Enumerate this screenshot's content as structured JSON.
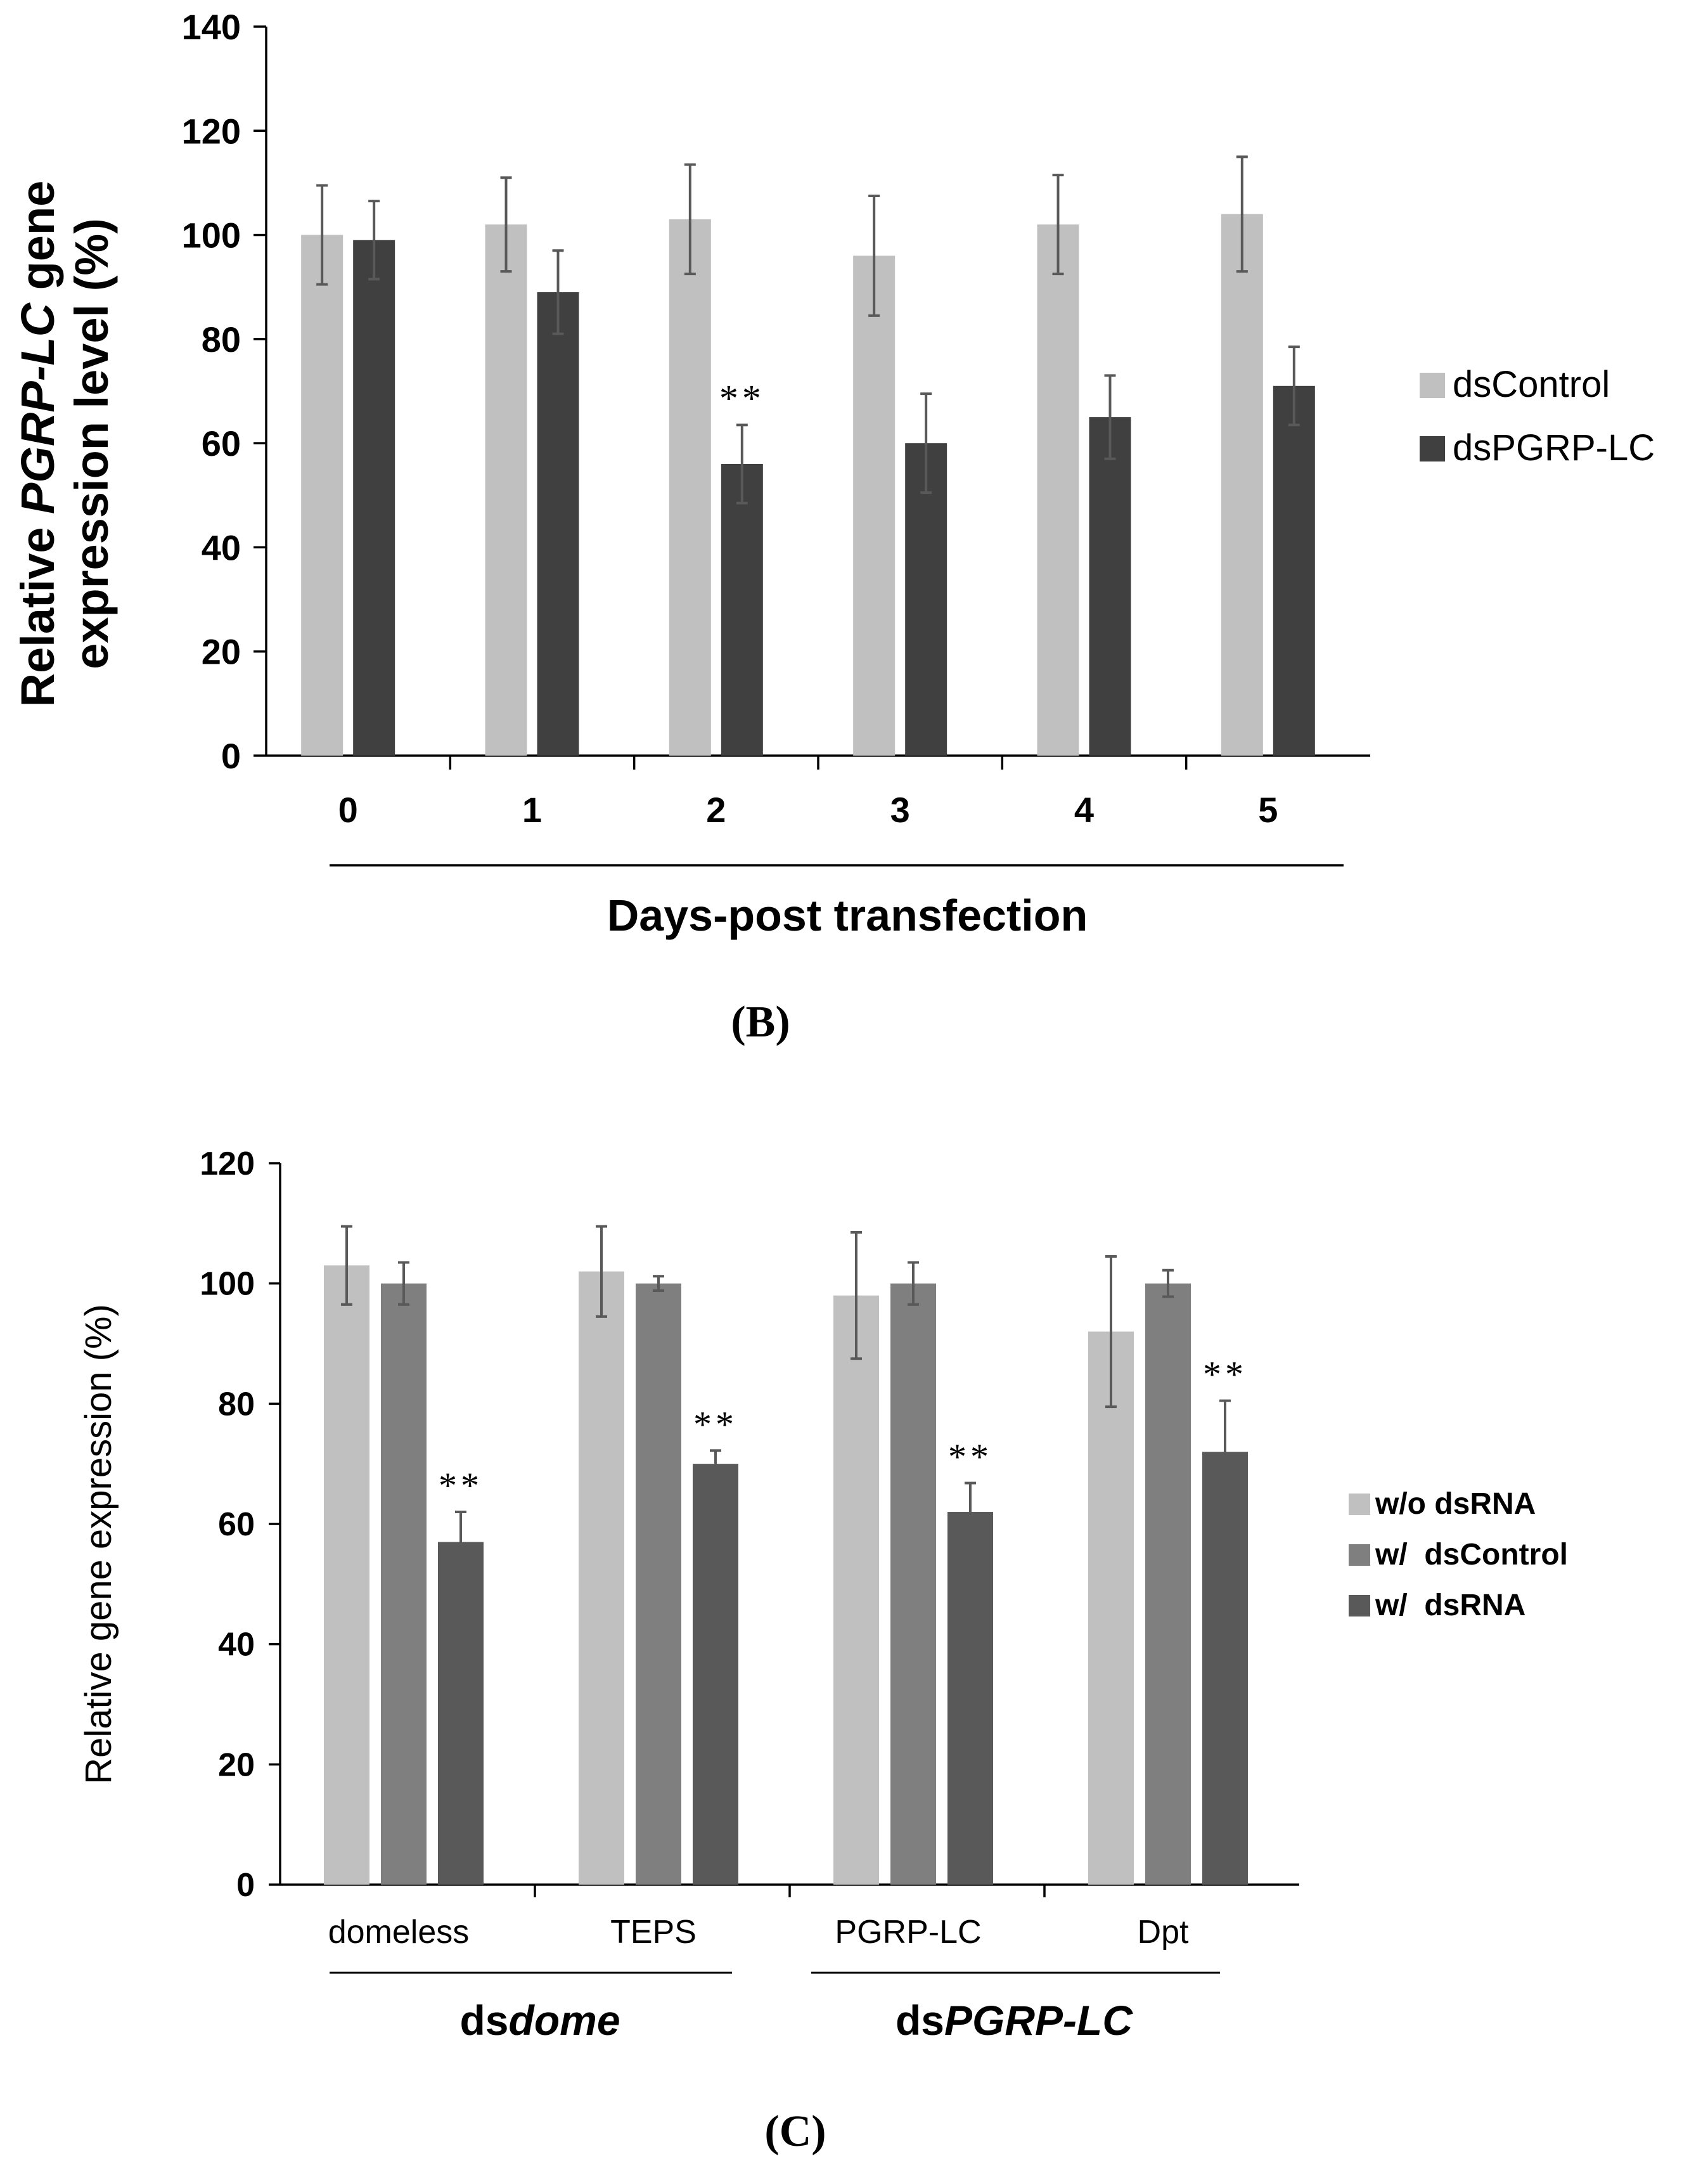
{
  "panels": {
    "B": {
      "label": "(B)"
    },
    "C": {
      "label": "(C)"
    }
  },
  "colors": {
    "light": "#c0c0c0",
    "mid": "#7f7f7f",
    "dark": "#404040",
    "dark_c": "#595959",
    "error": "#595959",
    "axis": "#000000"
  },
  "chart_data": [
    {
      "id": "B",
      "type": "bar",
      "ylabel_parts": [
        "Relative ",
        "PGRP-LC",
        " gene"
      ],
      "ylabel_line2": "expression level (%)",
      "xlabel": "Days-post transfection",
      "ylim": [
        0,
        140
      ],
      "yticks": [
        0,
        20,
        40,
        60,
        80,
        100,
        120,
        140
      ],
      "categories": [
        "0",
        "1",
        "2",
        "3",
        "4",
        "5"
      ],
      "series": [
        {
          "name": "dsControl",
          "values": [
            100,
            102,
            103,
            96,
            102,
            104
          ],
          "errors": [
            9.5,
            9,
            10.5,
            11.5,
            9.5,
            11
          ]
        },
        {
          "name": "dsPGRP-LC",
          "values": [
            99,
            89,
            56,
            60,
            65,
            71
          ],
          "errors": [
            7.5,
            8,
            7.5,
            9.5,
            8,
            7.5
          ]
        }
      ],
      "annotations": [
        {
          "category": "2",
          "series": "dsPGRP-LC",
          "text": "**"
        }
      ],
      "legend": "right"
    },
    {
      "id": "C",
      "type": "bar",
      "ylabel": "Relative gene expression (%)",
      "ylim": [
        0,
        120
      ],
      "yticks": [
        0,
        20,
        40,
        60,
        80,
        100,
        120
      ],
      "categories": [
        "domeless",
        "TEPS",
        "PGRP-LC",
        "Dpt"
      ],
      "groups": [
        {
          "label_prefix": "ds",
          "label_italic": "dome"
        },
        {
          "label_prefix": "ds",
          "label_italic": "PGRP-LC"
        }
      ],
      "series": [
        {
          "name": "w/o dsRNA",
          "values": [
            103,
            102,
            98,
            92
          ],
          "errors": [
            6.5,
            7.5,
            10.5,
            12.5
          ]
        },
        {
          "name": "w/  dsControl",
          "values": [
            100,
            100,
            100,
            100
          ],
          "errors": [
            3.5,
            1.2,
            3.5,
            2.2
          ]
        },
        {
          "name": "w/  dsRNA",
          "values": [
            57,
            70,
            62,
            72
          ],
          "errors": [
            5,
            2.2,
            4.8,
            8.5
          ]
        }
      ],
      "annotations": [
        {
          "category": "domeless",
          "series": "w/  dsRNA",
          "text": "**"
        },
        {
          "category": "TEPS",
          "series": "w/  dsRNA",
          "text": "**"
        },
        {
          "category": "PGRP-LC",
          "series": "w/  dsRNA",
          "text": "**"
        },
        {
          "category": "Dpt",
          "series": "w/  dsRNA",
          "text": "**"
        }
      ],
      "legend": "right"
    }
  ]
}
